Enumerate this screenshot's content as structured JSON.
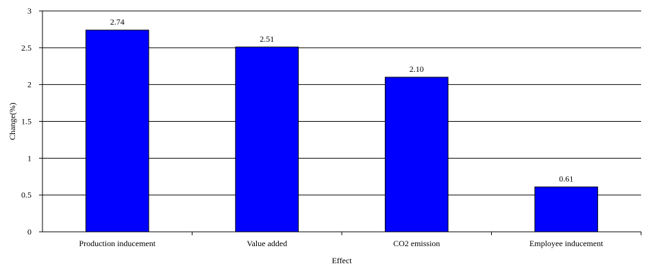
{
  "chart_data": {
    "type": "bar",
    "categories": [
      "Production inducement",
      "Value added",
      "CO2 emission",
      "Employee inducement"
    ],
    "values": [
      2.74,
      2.51,
      2.1,
      0.61
    ],
    "data_labels": [
      "2.74",
      "2.51",
      "2.10",
      "0.61"
    ],
    "xlabel": "Effect",
    "ylabel": "Change(%)",
    "ylim": [
      0,
      3
    ],
    "yticks": [
      0,
      0.5,
      1,
      1.5,
      2,
      2.5,
      3
    ],
    "ytick_labels": [
      "0",
      "0.5",
      "1",
      "1.5",
      "2",
      "2.5",
      "3"
    ],
    "grid": true,
    "legend": "none",
    "bar_color": "#0000FF",
    "bar_edge_color": "#000000"
  }
}
